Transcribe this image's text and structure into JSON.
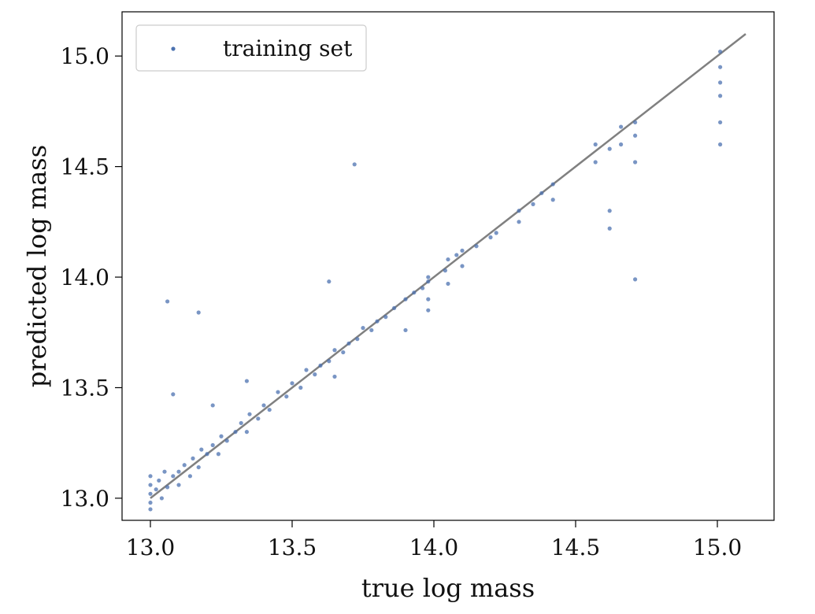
{
  "chart_data": {
    "type": "scatter",
    "xlabel": "true log mass",
    "ylabel": "predicted log mass",
    "xlim": [
      12.9,
      15.2
    ],
    "ylim": [
      12.9,
      15.2
    ],
    "xticks": [
      "13.0",
      "13.5",
      "14.0",
      "14.5",
      "15.0"
    ],
    "yticks": [
      "13.0",
      "13.5",
      "14.0",
      "14.5",
      "15.0"
    ],
    "grid": false,
    "legend_position": "top-left",
    "colors": {
      "points": "#4c72b0",
      "reference_line": "#808080"
    },
    "reference_line": {
      "from": [
        13.0,
        13.0
      ],
      "to": [
        15.1,
        15.1
      ]
    },
    "series": [
      {
        "name": "training set",
        "points": [
          [
            13.0,
            13.02
          ],
          [
            13.0,
            13.06
          ],
          [
            13.0,
            12.98
          ],
          [
            13.0,
            13.1
          ],
          [
            13.0,
            12.95
          ],
          [
            13.02,
            13.04
          ],
          [
            13.03,
            13.08
          ],
          [
            13.04,
            13.0
          ],
          [
            13.05,
            13.12
          ],
          [
            13.06,
            13.05
          ],
          [
            13.08,
            13.1
          ],
          [
            13.1,
            13.12
          ],
          [
            13.1,
            13.06
          ],
          [
            13.12,
            13.15
          ],
          [
            13.14,
            13.1
          ],
          [
            13.15,
            13.18
          ],
          [
            13.17,
            13.14
          ],
          [
            13.18,
            13.22
          ],
          [
            13.2,
            13.2
          ],
          [
            13.22,
            13.24
          ],
          [
            13.24,
            13.2
          ],
          [
            13.25,
            13.28
          ],
          [
            13.27,
            13.26
          ],
          [
            13.3,
            13.3
          ],
          [
            13.32,
            13.34
          ],
          [
            13.34,
            13.3
          ],
          [
            13.35,
            13.38
          ],
          [
            13.38,
            13.36
          ],
          [
            13.4,
            13.42
          ],
          [
            13.42,
            13.4
          ],
          [
            13.45,
            13.48
          ],
          [
            13.48,
            13.46
          ],
          [
            13.5,
            13.52
          ],
          [
            13.53,
            13.5
          ],
          [
            13.55,
            13.58
          ],
          [
            13.58,
            13.56
          ],
          [
            13.6,
            13.6
          ],
          [
            13.63,
            13.62
          ],
          [
            13.65,
            13.67
          ],
          [
            13.68,
            13.66
          ],
          [
            13.7,
            13.7
          ],
          [
            13.73,
            13.72
          ],
          [
            13.75,
            13.77
          ],
          [
            13.78,
            13.76
          ],
          [
            13.8,
            13.8
          ],
          [
            13.83,
            13.82
          ],
          [
            13.86,
            13.86
          ],
          [
            13.9,
            13.9
          ],
          [
            13.93,
            13.93
          ],
          [
            13.96,
            13.95
          ],
          [
            13.98,
            13.98
          ],
          [
            13.98,
            13.9
          ],
          [
            13.98,
            14.0
          ],
          [
            13.98,
            13.85
          ],
          [
            14.04,
            14.03
          ],
          [
            14.05,
            14.08
          ],
          [
            14.05,
            13.97
          ],
          [
            14.08,
            14.1
          ],
          [
            14.1,
            14.12
          ],
          [
            14.1,
            14.05
          ],
          [
            14.15,
            14.14
          ],
          [
            14.2,
            14.18
          ],
          [
            14.22,
            14.2
          ],
          [
            14.3,
            14.3
          ],
          [
            14.3,
            14.25
          ],
          [
            14.35,
            14.33
          ],
          [
            14.38,
            14.38
          ],
          [
            14.42,
            14.42
          ],
          [
            14.42,
            14.35
          ],
          [
            14.57,
            14.52
          ],
          [
            14.57,
            14.6
          ],
          [
            14.62,
            14.58
          ],
          [
            14.62,
            14.3
          ],
          [
            14.62,
            14.22
          ],
          [
            14.66,
            14.6
          ],
          [
            14.66,
            14.68
          ],
          [
            14.71,
            14.64
          ],
          [
            14.71,
            14.7
          ],
          [
            14.71,
            14.52
          ],
          [
            15.01,
            14.95
          ],
          [
            15.01,
            15.02
          ],
          [
            15.01,
            14.88
          ],
          [
            15.01,
            14.82
          ],
          [
            15.01,
            14.7
          ],
          [
            15.01,
            14.6
          ],
          [
            13.06,
            13.89
          ],
          [
            13.17,
            13.84
          ],
          [
            13.08,
            13.47
          ],
          [
            13.72,
            14.51
          ],
          [
            13.63,
            13.98
          ],
          [
            14.71,
            13.99
          ],
          [
            13.34,
            13.53
          ],
          [
            13.65,
            13.55
          ],
          [
            13.22,
            13.42
          ],
          [
            13.9,
            13.76
          ]
        ]
      }
    ]
  }
}
